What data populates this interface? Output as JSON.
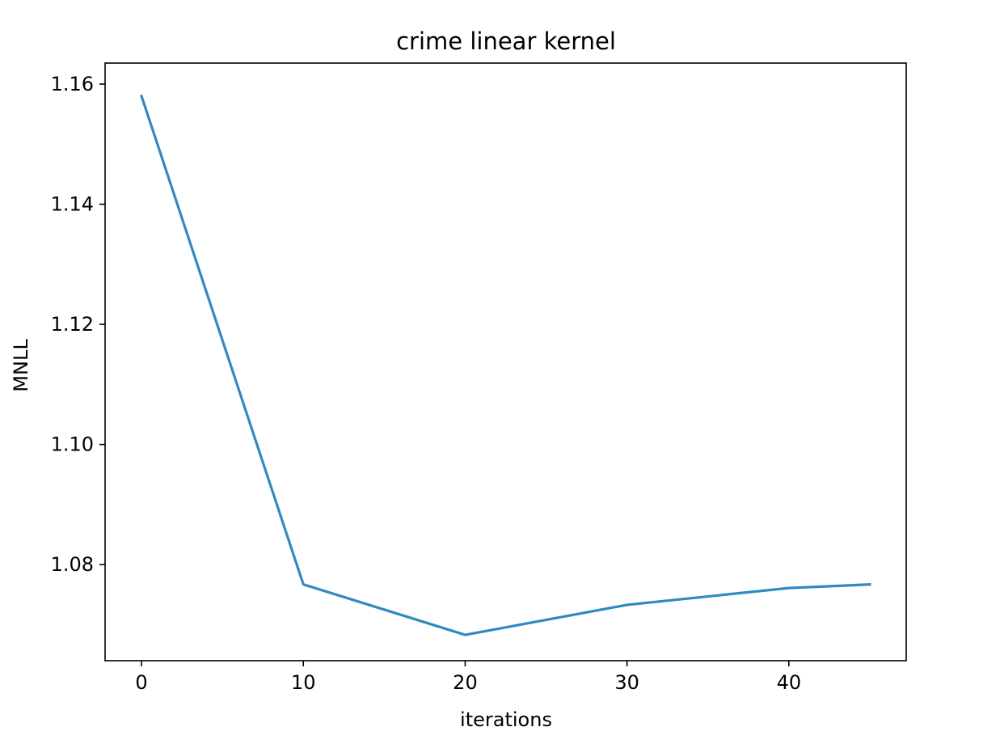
{
  "chart_data": {
    "type": "line",
    "title": "crime linear kernel",
    "xlabel": "iterations",
    "ylabel": "MNLL",
    "xlim": [
      -2.25,
      47.25
    ],
    "ylim": [
      1.064,
      1.1635
    ],
    "x_ticks": [
      0,
      10,
      20,
      30,
      40
    ],
    "x_tick_labels": [
      "0",
      "10",
      "20",
      "30",
      "40"
    ],
    "y_ticks": [
      1.08,
      1.1,
      1.12,
      1.14,
      1.16
    ],
    "y_tick_labels": [
      "1.08",
      "1.10",
      "1.12",
      "1.14",
      "1.16"
    ],
    "grid": false,
    "series": [
      {
        "color": "#2e8bc0",
        "x": [
          0,
          10,
          20,
          30,
          40,
          45
        ],
        "y": [
          1.158,
          1.0767,
          1.0683,
          1.0733,
          1.0761,
          1.0767
        ]
      }
    ]
  }
}
